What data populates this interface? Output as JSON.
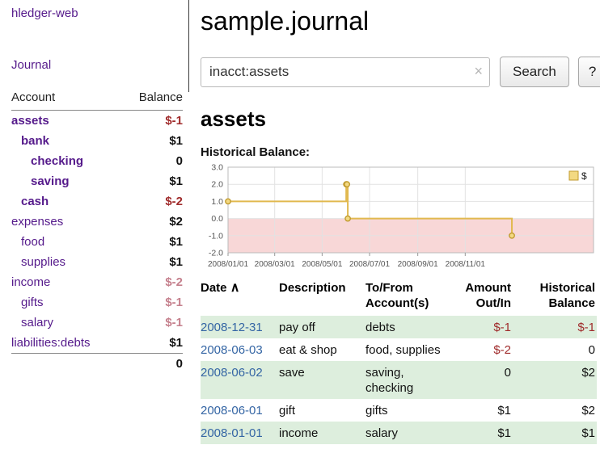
{
  "app": {
    "brand": "hledger-web",
    "nav": {
      "journal": "Journal"
    }
  },
  "sidebar": {
    "header": {
      "account": "Account",
      "balance": "Balance"
    },
    "accounts": [
      {
        "name": "assets",
        "balance": "$-1",
        "indent": 0,
        "bold": true,
        "tone": "neg"
      },
      {
        "name": "bank",
        "balance": "$1",
        "indent": 1,
        "bold": true,
        "tone": ""
      },
      {
        "name": "checking",
        "balance": "0",
        "indent": 2,
        "bold": true,
        "tone": ""
      },
      {
        "name": "saving",
        "balance": "$1",
        "indent": 2,
        "bold": true,
        "tone": ""
      },
      {
        "name": "cash",
        "balance": "$-2",
        "indent": 1,
        "bold": true,
        "tone": "neg"
      },
      {
        "name": "expenses",
        "balance": "$2",
        "indent": 0,
        "bold": false,
        "tone": ""
      },
      {
        "name": "food",
        "balance": "$1",
        "indent": 1,
        "bold": false,
        "tone": ""
      },
      {
        "name": "supplies",
        "balance": "$1",
        "indent": 1,
        "bold": false,
        "tone": ""
      },
      {
        "name": "income",
        "balance": "$-2",
        "indent": 0,
        "bold": false,
        "tone": "negsoft"
      },
      {
        "name": "gifts",
        "balance": "$-1",
        "indent": 1,
        "bold": false,
        "tone": "negsoft"
      },
      {
        "name": "salary",
        "balance": "$-1",
        "indent": 1,
        "bold": false,
        "tone": "negsoft"
      },
      {
        "name": "liabilities:debts",
        "balance": "$1",
        "indent": 0,
        "bold": false,
        "tone": ""
      }
    ],
    "total": "0"
  },
  "main": {
    "title": "sample.journal",
    "search": {
      "value": "inacct:assets",
      "clear_icon": "×",
      "search_button": "Search",
      "help_button": "?"
    },
    "account_heading": "assets",
    "section_label": "Historical Balance:"
  },
  "chart_data": {
    "type": "line",
    "step": true,
    "title": "Historical Balance",
    "legend": [
      {
        "label": "$",
        "color": "#e1b94f"
      }
    ],
    "series": [
      {
        "name": "$",
        "points": [
          {
            "date": "2008-01-01",
            "value": 1
          },
          {
            "date": "2008-06-01",
            "value": 2
          },
          {
            "date": "2008-06-02",
            "value": 2
          },
          {
            "date": "2008-06-03",
            "value": 0
          },
          {
            "date": "2008-12-31",
            "value": -1
          }
        ]
      }
    ],
    "ylim": [
      -2,
      3
    ],
    "yticks": [
      "3.0",
      "2.0",
      "1.0",
      "0.0",
      "-1.0",
      "-2.0"
    ],
    "xticks": [
      {
        "date": "2008-01-01",
        "label": "2008/01/01"
      },
      {
        "date": "2008-03-01",
        "label": "2008/03/01"
      },
      {
        "date": "2008-05-01",
        "label": "2008/05/01"
      },
      {
        "date": "2008-07-01",
        "label": "2008/07/01"
      },
      {
        "date": "2008-09-01",
        "label": "2008/09/01"
      },
      {
        "date": "2008-11-01",
        "label": "2008/11/01"
      }
    ],
    "x_domain": [
      "2008-01-01",
      "2009-04-15"
    ],
    "grid": true,
    "legend_position": "top-right",
    "colors": {
      "line": "#e1b94f",
      "marker_fill": "#f3d982",
      "marker_stroke": "#c09a2e",
      "negative_region": "#f8d7d7",
      "grid": "#e2e2e2",
      "border": "#bbbbbb",
      "tick_text": "#555555"
    }
  },
  "register": {
    "columns": [
      "Date",
      "Description",
      "To/From Account(s)",
      "Amount Out/In",
      "Historical Balance"
    ],
    "sort_icon": "∧",
    "rows": [
      {
        "date": "2008-12-31",
        "description": "pay off",
        "accounts": "debts",
        "amount": "$-1",
        "amount_negative": true,
        "balance": "$-1",
        "balance_negative": true,
        "stripe": true
      },
      {
        "date": "2008-06-03",
        "description": "eat & shop",
        "accounts": "food, supplies",
        "amount": "$-2",
        "amount_negative": true,
        "balance": "0",
        "balance_negative": false,
        "stripe": false
      },
      {
        "date": "2008-06-02",
        "description": "save",
        "accounts": "saving, checking",
        "amount": "0",
        "amount_negative": false,
        "balance": "$2",
        "balance_negative": false,
        "stripe": true
      },
      {
        "date": "2008-06-01",
        "description": "gift",
        "accounts": "gifts",
        "amount": "$1",
        "amount_negative": false,
        "balance": "$2",
        "balance_negative": false,
        "stripe": false
      },
      {
        "date": "2008-01-01",
        "description": "income",
        "accounts": "salary",
        "amount": "$1",
        "amount_negative": false,
        "balance": "$1",
        "balance_negative": false,
        "stripe": true
      }
    ]
  },
  "colors": {
    "link_purple": "#551a8b",
    "negative": "#a02c2c",
    "negative_soft": "#c5808d",
    "date_link": "#3465a4",
    "row_stripe": "#ddeedd"
  }
}
